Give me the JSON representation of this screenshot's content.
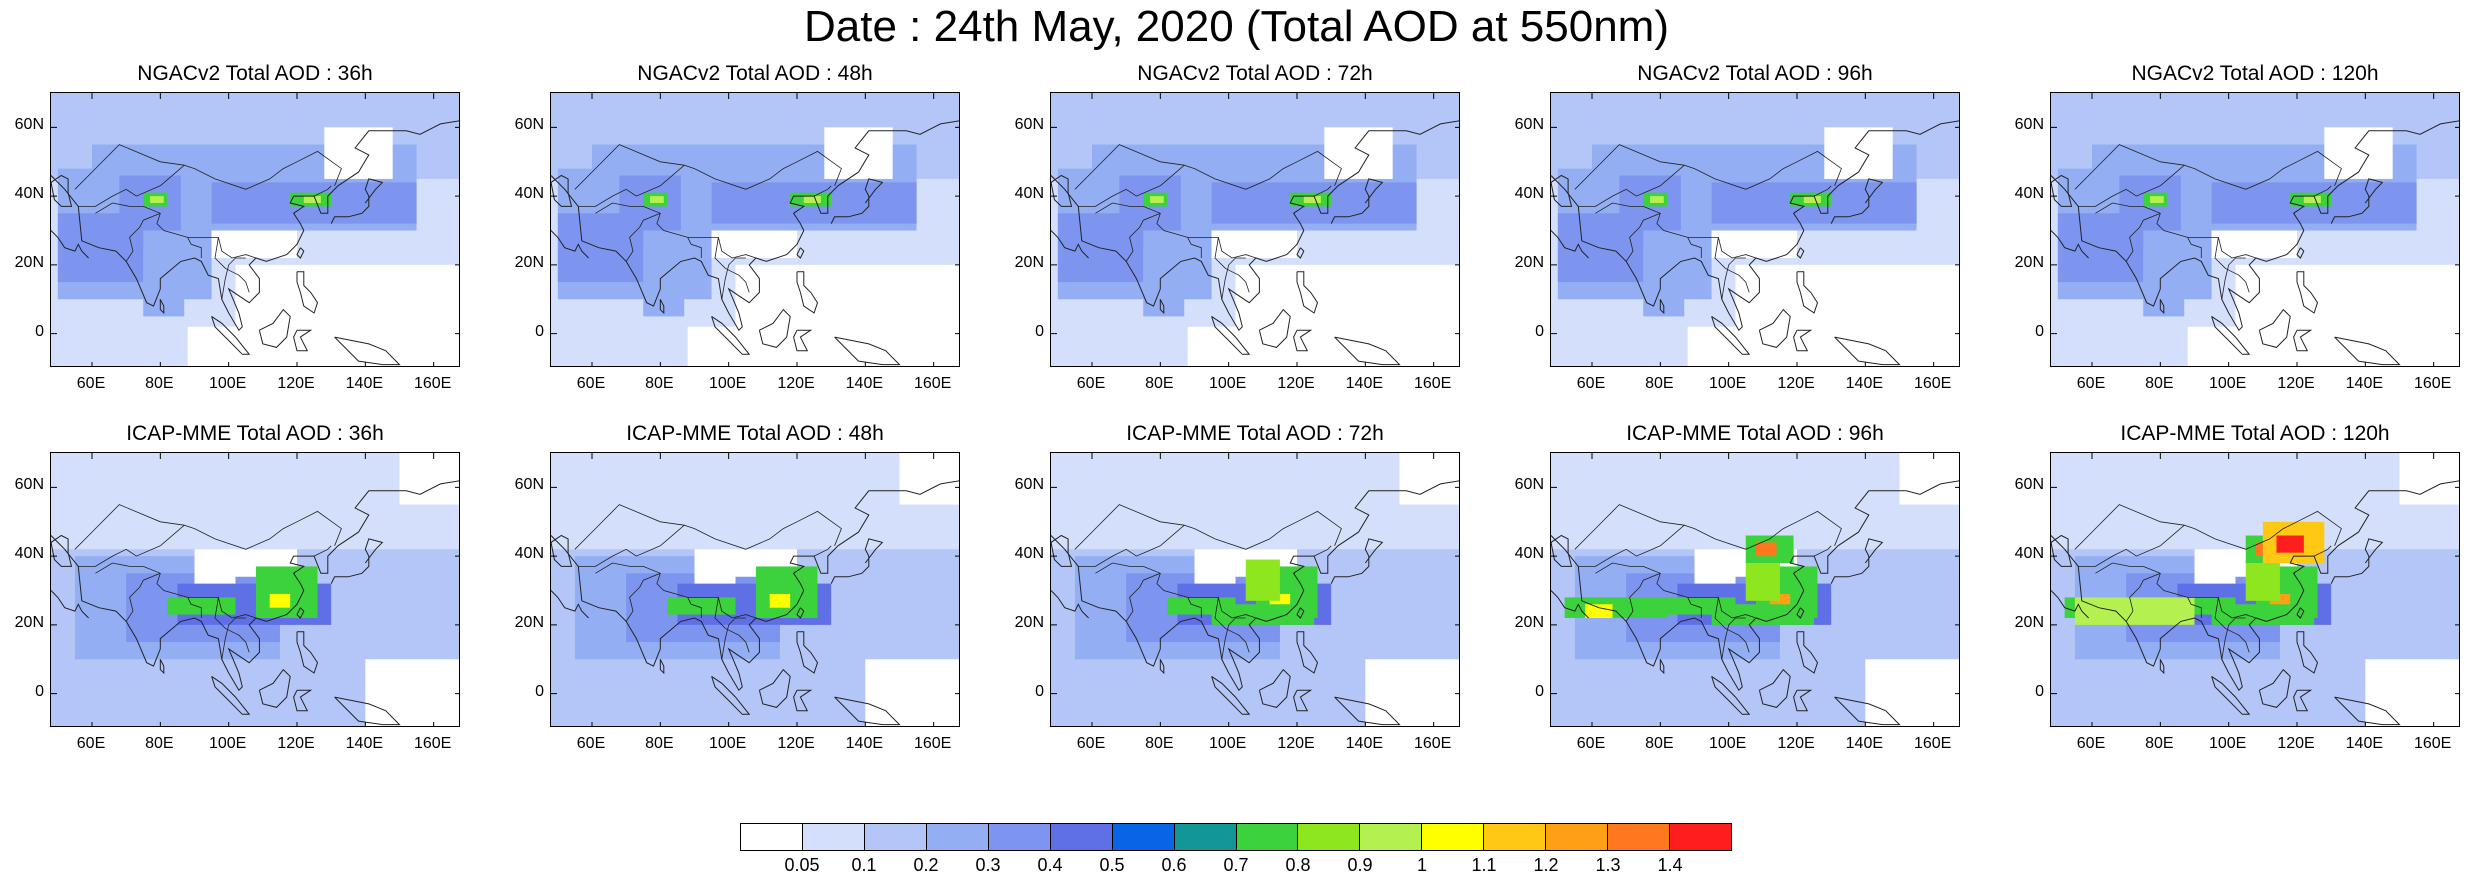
{
  "figure": {
    "title": "Date : 24th May, 2020 (Total AOD at 550nm)"
  },
  "panels": [
    {
      "title": "NGACv2 Total AOD : 36h",
      "model": "ngac",
      "lead": 36
    },
    {
      "title": "NGACv2 Total AOD : 48h",
      "model": "ngac",
      "lead": 48
    },
    {
      "title": "NGACv2 Total AOD : 72h",
      "model": "ngac",
      "lead": 72
    },
    {
      "title": "NGACv2 Total AOD : 96h",
      "model": "ngac",
      "lead": 96
    },
    {
      "title": "NGACv2 Total AOD : 120h",
      "model": "ngac",
      "lead": 120
    },
    {
      "title": "ICAP-MME Total AOD : 36h",
      "model": "icap",
      "lead": 36
    },
    {
      "title": "ICAP-MME Total AOD : 48h",
      "model": "icap",
      "lead": 48
    },
    {
      "title": "ICAP-MME Total AOD : 72h",
      "model": "icap",
      "lead": 72
    },
    {
      "title": "ICAP-MME Total AOD : 96h",
      "model": "icap",
      "lead": 96
    },
    {
      "title": "ICAP-MME Total AOD : 120h",
      "model": "icap",
      "lead": 120
    }
  ],
  "axes": {
    "lat_ticks": [
      "60N",
      "40N",
      "20N",
      "0"
    ],
    "lon_ticks": [
      "60E",
      "80E",
      "100E",
      "120E",
      "140E",
      "160E"
    ],
    "lat_values": [
      60,
      40,
      20,
      0
    ],
    "lon_values": [
      60,
      80,
      100,
      120,
      140,
      160
    ],
    "lon_range": [
      48,
      168
    ],
    "lat_range": [
      -10,
      70
    ]
  },
  "colorbar": {
    "labels": [
      "0.05",
      "0.1",
      "0.2",
      "0.3",
      "0.4",
      "0.5",
      "0.6",
      "0.7",
      "0.8",
      "0.9",
      "1",
      "1.1",
      "1.2",
      "1.3",
      "1.4"
    ],
    "colors": [
      "#ffffff",
      "#d4e0fb",
      "#b3c6f7",
      "#93aef3",
      "#7d95ef",
      "#5f6fe6",
      "#0a64e6",
      "#129696",
      "#3cd23c",
      "#8ee61e",
      "#b4f050",
      "#ffff00",
      "#ffc814",
      "#ffa014",
      "#ff781e",
      "#ff1e1e"
    ]
  }
}
